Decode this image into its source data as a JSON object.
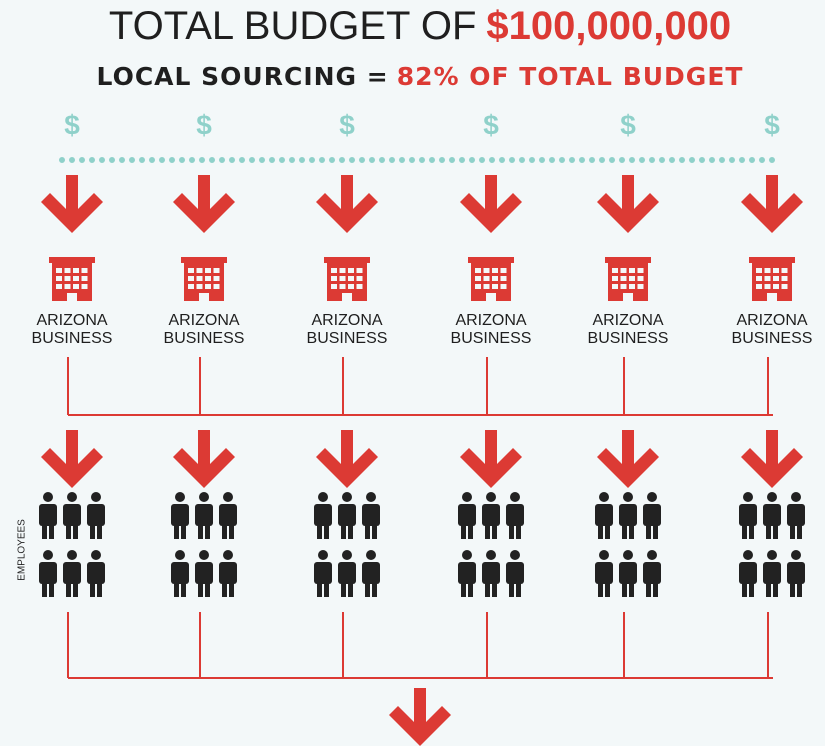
{
  "title": {
    "prefix": "TOTAL BUDGET OF",
    "amount": "$100,000,000"
  },
  "subtitle": {
    "prefix": "LOCAL SOURCING =",
    "share": "82% OF TOTAL BUDGET"
  },
  "columns": [
    {
      "symbol": "$",
      "label": [
        "ARIZONA",
        "BUSINESS"
      ]
    },
    {
      "symbol": "$",
      "label": [
        "ARIZONA",
        "BUSINESS"
      ]
    },
    {
      "symbol": "$",
      "label": [
        "ARIZONA",
        "BUSINESS"
      ]
    },
    {
      "symbol": "$",
      "label": [
        "ARIZONA",
        "BUSINESS"
      ]
    },
    {
      "symbol": "$",
      "label": [
        "ARIZONA",
        "BUSINESS"
      ]
    },
    {
      "symbol": "$",
      "label": [
        "ARIZONA",
        "BUSINESS"
      ]
    }
  ],
  "employees_label": "EMPLOYEES"
}
